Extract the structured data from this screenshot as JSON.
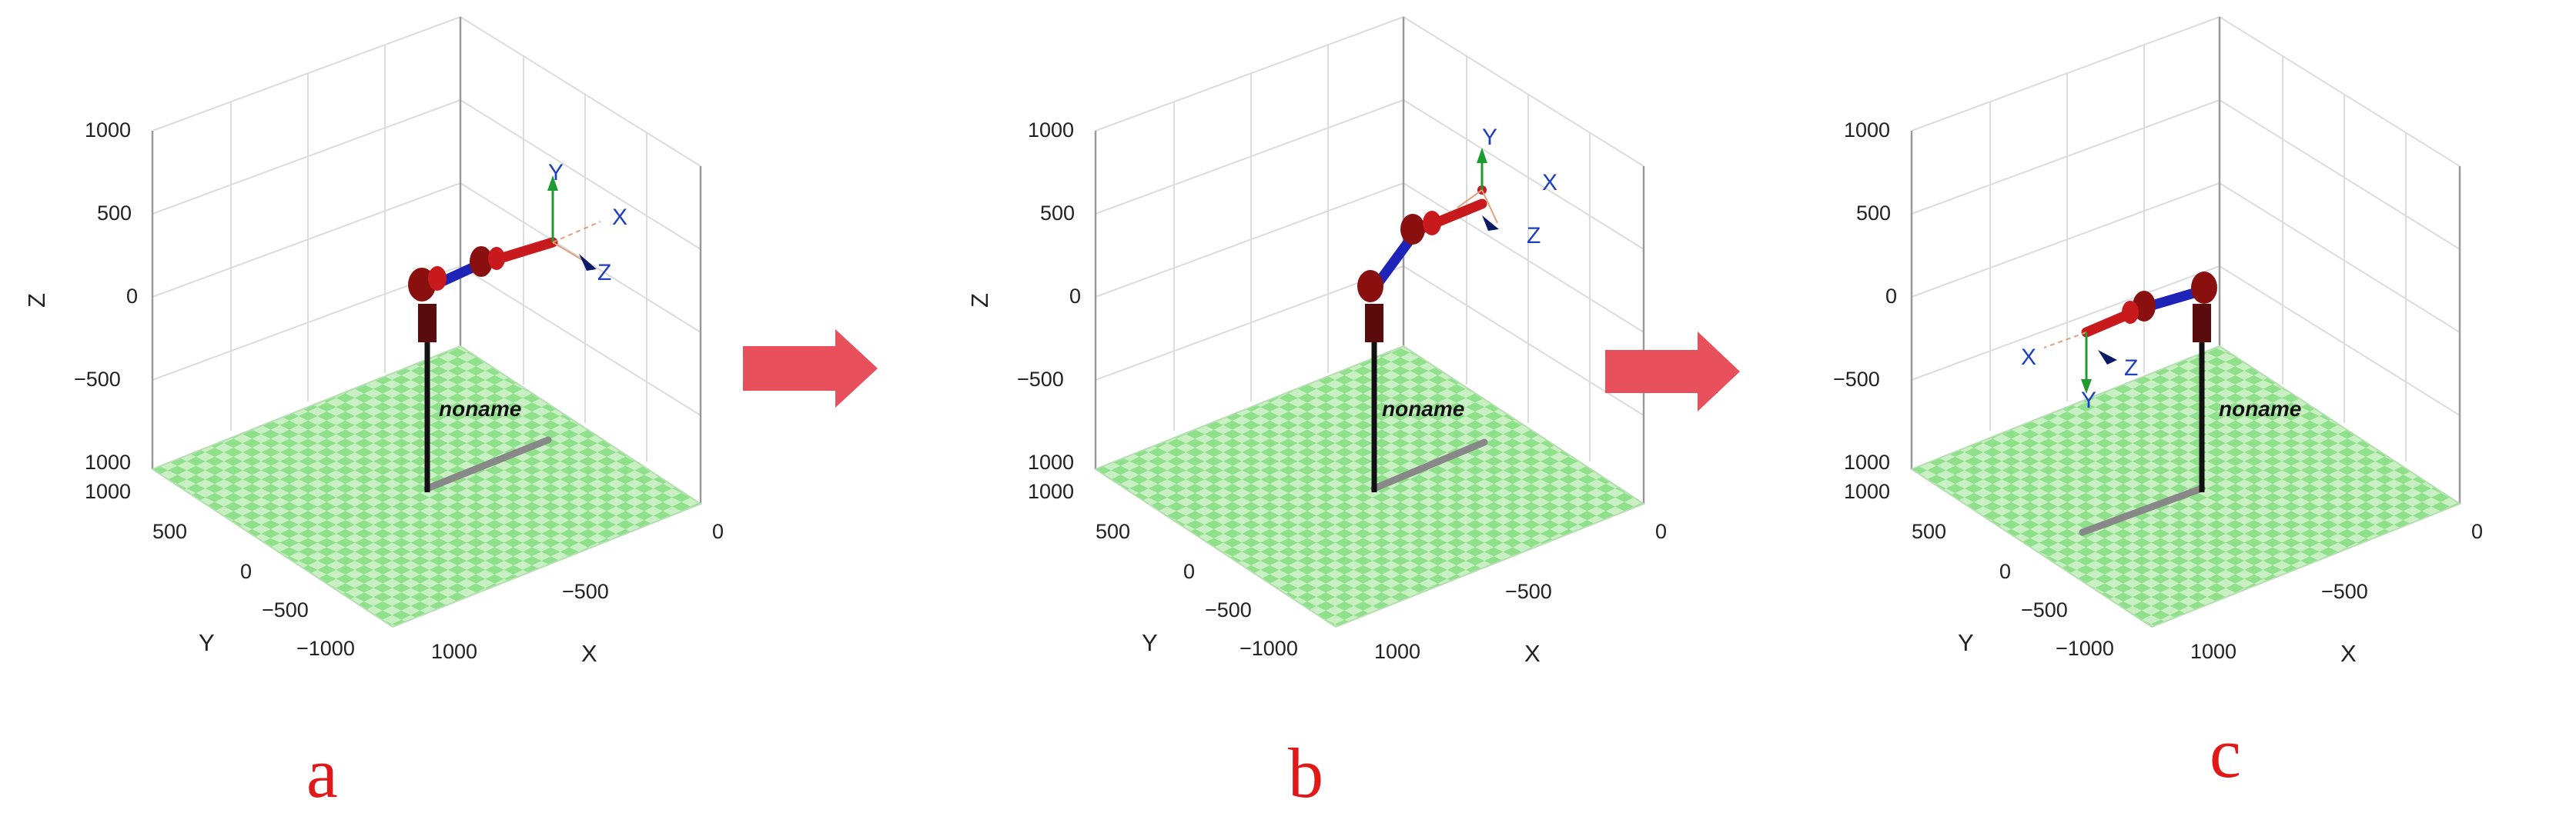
{
  "panels": [
    {
      "caption": "a",
      "robot_name": "noname",
      "z_ticks": [
        "1000",
        "500",
        "0",
        "−500",
        "1000"
      ],
      "y_ticks": [
        "1000",
        "500",
        "0",
        "−500",
        "−1000"
      ],
      "x_ticks": [
        "0",
        "−500",
        "1000"
      ],
      "axis_labels": {
        "x": "X",
        "y": "Y",
        "z": "Z"
      },
      "frame_labels": {
        "x": "X",
        "y": "Y",
        "z": "Z"
      }
    },
    {
      "caption": "b",
      "robot_name": "noname",
      "z_ticks": [
        "1000",
        "500",
        "0",
        "−500",
        "1000"
      ],
      "y_ticks": [
        "1000",
        "500",
        "0",
        "−500",
        "−1000"
      ],
      "x_ticks": [
        "0",
        "−500",
        "1000"
      ],
      "axis_labels": {
        "x": "X",
        "y": "Y",
        "z": "Z"
      },
      "frame_labels": {
        "x": "X",
        "y": "Y",
        "z": "Z"
      }
    },
    {
      "caption": "c",
      "robot_name": "noname",
      "z_ticks": [
        "1000",
        "500",
        "0",
        "−500",
        "1000"
      ],
      "y_ticks": [
        "1000",
        "500",
        "0",
        "−500",
        "−1000"
      ],
      "x_ticks": [
        "0",
        "−500",
        "1000"
      ],
      "axis_labels": {
        "x": "X",
        "y": "Y",
        "z": "Z"
      },
      "frame_labels": {
        "x": "X",
        "y": "Y",
        "z": "Z"
      }
    }
  ],
  "colors": {
    "arrow": "#e8505b",
    "caption": "#e01818",
    "floor_light": "#c9f0c3",
    "floor_dark": "#8fe08a",
    "link_red": "#c8191c",
    "link_blue": "#1f24b8",
    "joint": "#8a1010",
    "frame_x": "#1f3fbf",
    "frame_y": "#1f9a2f",
    "frame_z": "#0b1a66"
  },
  "icons": {
    "transition": "right-arrow-icon"
  }
}
